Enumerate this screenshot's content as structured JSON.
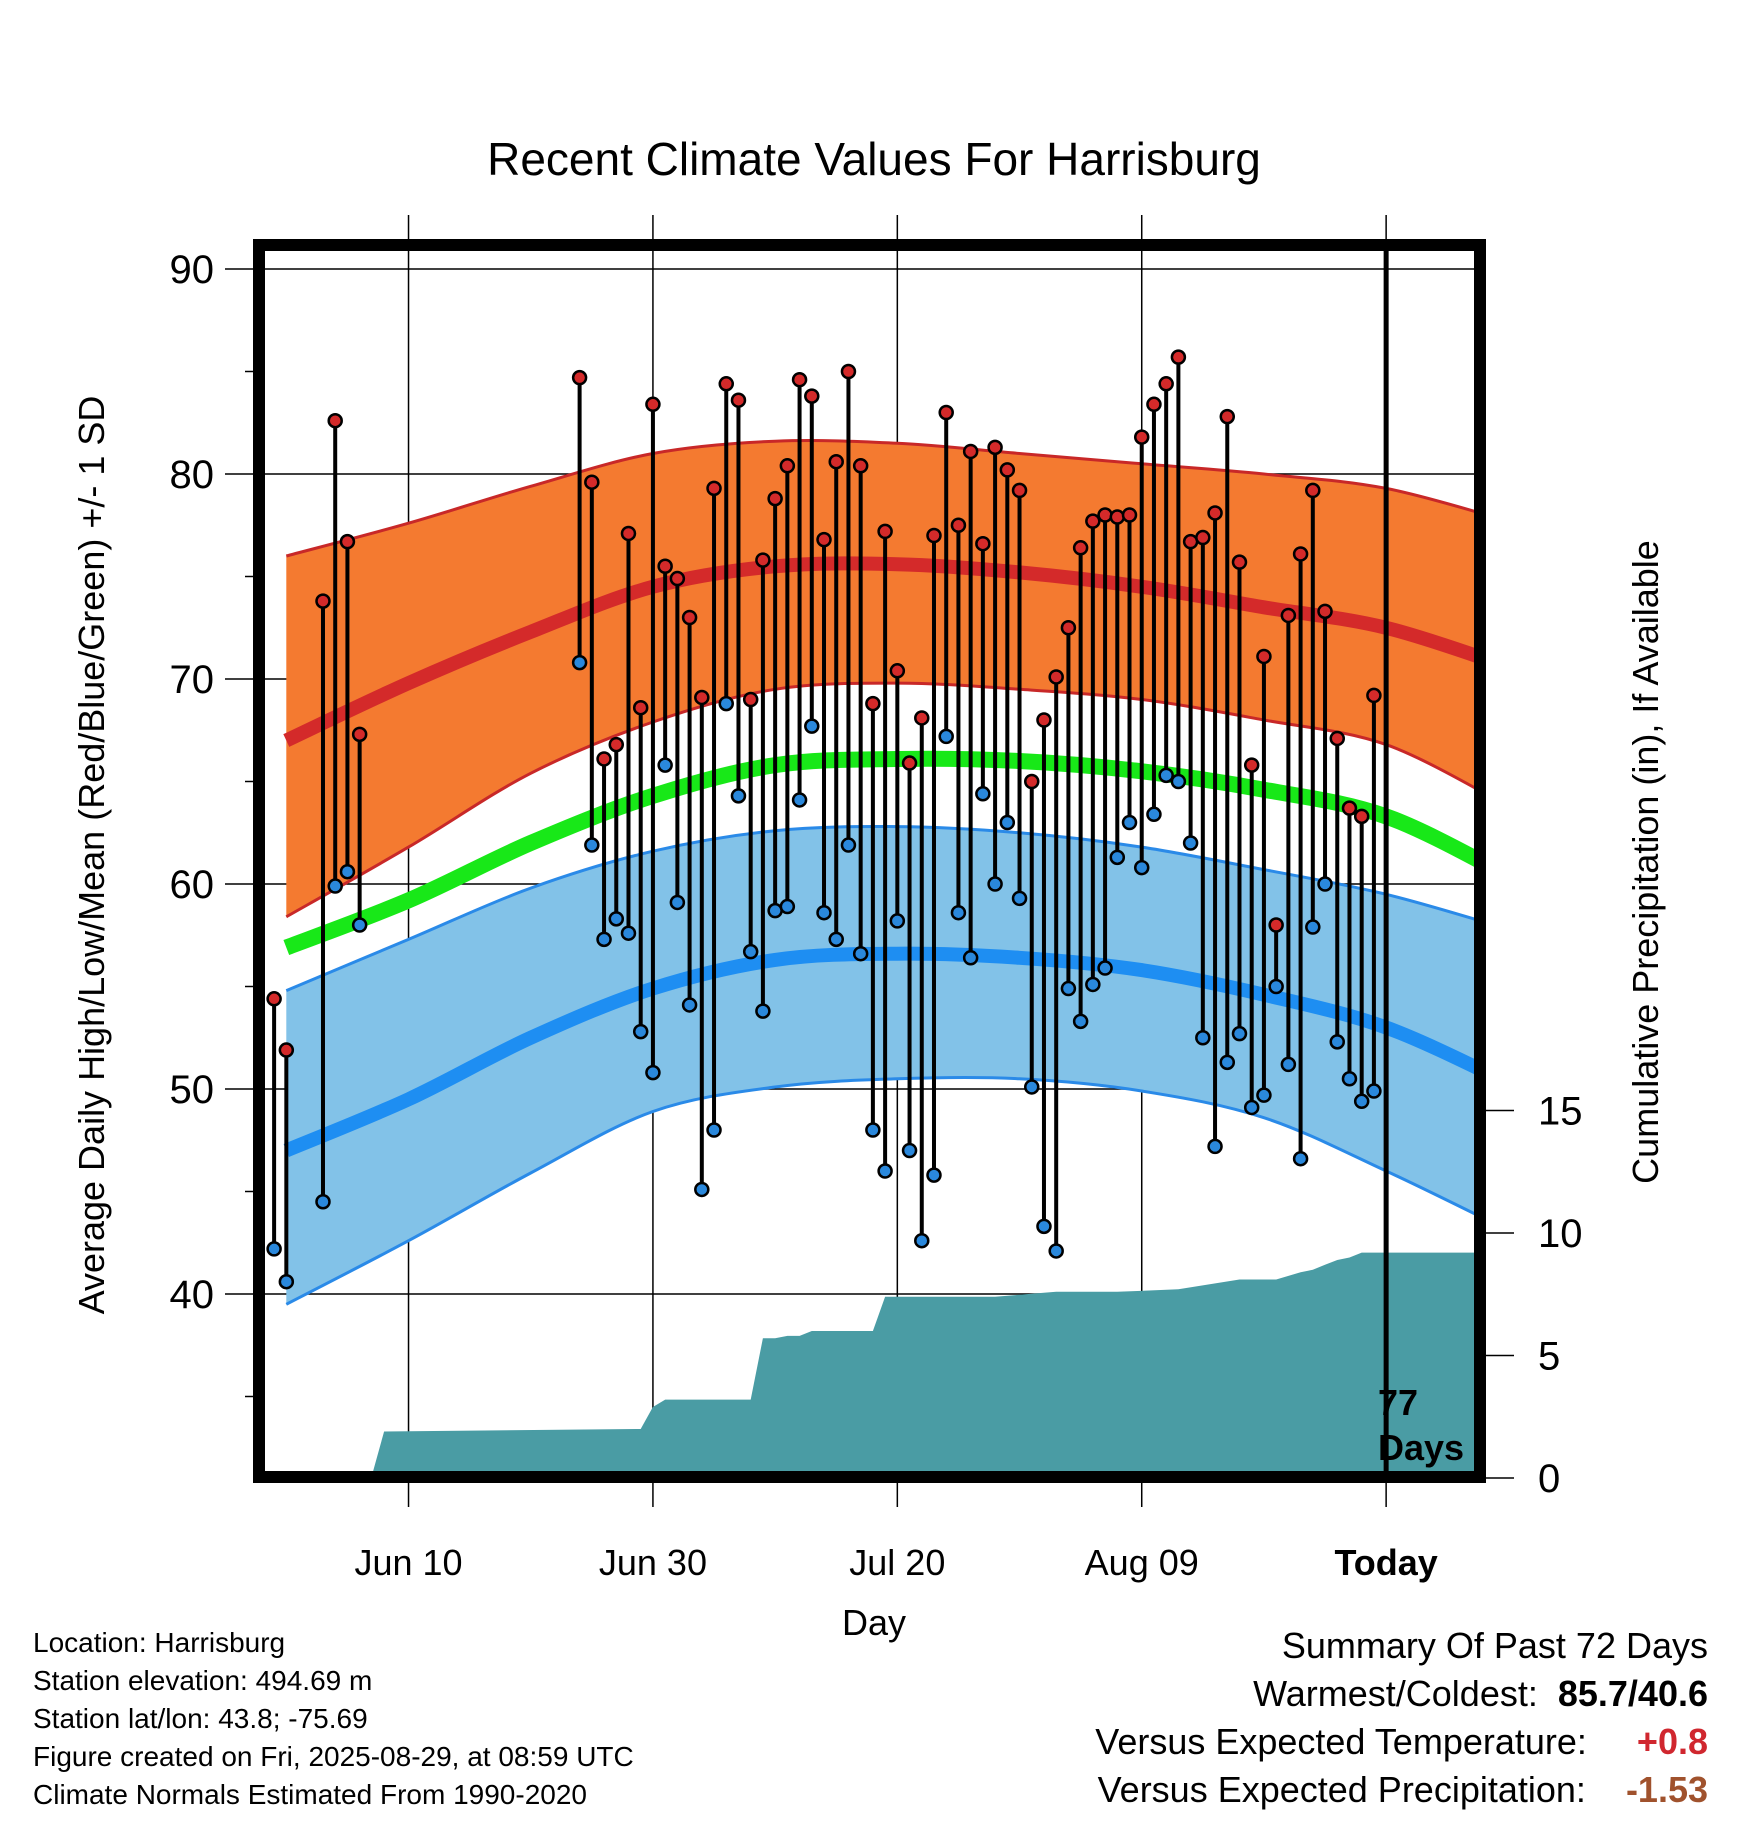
{
  "chart_data": {
    "type": "line",
    "title": "Recent Climate Values For Harrisburg",
    "xlabel": "Day",
    "ylabel": "Average Daily High/Low/Mean (Red/Blue/Green) +/- 1 SD",
    "y2label": "Cumulative Precipitation (in), If Available",
    "ylim": [
      30,
      90
    ],
    "yticks": [
      40,
      50,
      60,
      70,
      80,
      90
    ],
    "y2lim": [
      0,
      30
    ],
    "y2ticks": [
      0,
      5,
      10,
      15
    ],
    "xlim": [
      0,
      76
    ],
    "xticks": [
      {
        "x": 7,
        "label": "Jun 10"
      },
      {
        "x": 27,
        "label": "Jun 30"
      },
      {
        "x": 47,
        "label": "Jul 20"
      },
      {
        "x": 67,
        "label": "Aug 09"
      },
      {
        "x": 87,
        "label": "Today"
      }
    ],
    "grid": true,
    "today_x": 87,
    "today_label": "77",
    "today_label2": "Days",
    "normals": {
      "days": [
        -3,
        7,
        17,
        27,
        37,
        47,
        57,
        67,
        77,
        87,
        97
      ],
      "high_mean": [
        67.0,
        69.8,
        72.3,
        74.5,
        75.5,
        75.6,
        75.2,
        74.5,
        73.5,
        72.5,
        70.6
      ],
      "high_plus_sd": [
        76.0,
        77.6,
        79.4,
        81.0,
        81.6,
        81.5,
        81.0,
        80.5,
        80.0,
        79.3,
        77.7
      ],
      "high_minus_sd": [
        58.4,
        61.8,
        65.4,
        67.9,
        69.5,
        69.8,
        69.5,
        69.0,
        68.0,
        66.8,
        63.8
      ],
      "mean": [
        56.9,
        59.2,
        62.0,
        64.3,
        65.8,
        66.1,
        66.0,
        65.5,
        64.6,
        63.3,
        60.4
      ],
      "low_mean": [
        47.0,
        49.5,
        52.5,
        54.9,
        56.3,
        56.6,
        56.4,
        55.8,
        54.6,
        53.0,
        50.3
      ],
      "low_plus_sd": [
        54.8,
        57.3,
        59.8,
        61.6,
        62.6,
        62.8,
        62.5,
        61.8,
        60.7,
        59.5,
        57.8
      ],
      "low_minus_sd": [
        39.5,
        42.6,
        45.9,
        48.9,
        50.1,
        50.5,
        50.5,
        49.9,
        48.6,
        46.0,
        43.1
      ]
    },
    "series": [
      {
        "name": "High",
        "x": [
          -4,
          -3,
          0,
          1,
          2,
          3,
          21,
          22,
          23,
          24,
          25,
          26,
          27,
          28,
          29,
          30,
          31,
          32,
          33,
          34,
          35,
          36,
          37,
          38,
          39,
          40,
          41,
          42,
          43,
          44,
          45,
          46,
          47,
          48,
          49,
          50,
          51,
          52,
          53,
          54,
          55,
          56,
          57,
          58,
          59,
          60,
          61,
          62,
          63,
          64,
          65,
          66,
          67,
          68,
          69,
          70,
          71,
          72,
          73,
          74,
          75,
          76,
          77,
          78,
          79,
          80,
          81,
          82,
          83,
          84,
          85,
          86
        ],
        "values": [
          54.4,
          51.9,
          73.8,
          82.6,
          76.7,
          67.3,
          84.7,
          79.6,
          66.1,
          66.8,
          77.1,
          68.6,
          83.4,
          75.5,
          74.9,
          73.0,
          69.1,
          79.3,
          84.4,
          83.6,
          69.0,
          75.8,
          78.8,
          80.4,
          84.6,
          83.8,
          76.8,
          80.6,
          85.0,
          80.4,
          68.8,
          77.2,
          70.4,
          65.9,
          68.1,
          77.0,
          83.0,
          77.5,
          81.1,
          76.6,
          81.3,
          80.2,
          79.2,
          65.0,
          68.0,
          70.1,
          72.5,
          76.4,
          77.7,
          78.0,
          77.9,
          78.0,
          81.8,
          83.4,
          84.4,
          85.7,
          76.7,
          76.9,
          78.1,
          82.8,
          75.7,
          65.8,
          71.1,
          58.0,
          73.1,
          76.1,
          79.2,
          73.3,
          67.1,
          63.7,
          63.3,
          69.2
        ]
      },
      {
        "name": "Low",
        "x": [
          -4,
          -3,
          0,
          1,
          2,
          3,
          21,
          22,
          23,
          24,
          25,
          26,
          27,
          28,
          29,
          30,
          31,
          32,
          33,
          34,
          35,
          36,
          37,
          38,
          39,
          40,
          41,
          42,
          43,
          44,
          45,
          46,
          47,
          48,
          49,
          50,
          51,
          52,
          53,
          54,
          55,
          56,
          57,
          58,
          59,
          60,
          61,
          62,
          63,
          64,
          65,
          66,
          67,
          68,
          69,
          70,
          71,
          72,
          73,
          74,
          75,
          76,
          77,
          78,
          79,
          80,
          81,
          82,
          83,
          84,
          85,
          86
        ],
        "values": [
          42.2,
          40.6,
          44.5,
          59.9,
          60.6,
          58.0,
          70.8,
          61.9,
          57.3,
          58.3,
          57.6,
          52.8,
          50.8,
          65.8,
          59.1,
          54.1,
          45.1,
          48.0,
          68.8,
          64.3,
          56.7,
          53.8,
          58.7,
          58.9,
          64.1,
          67.7,
          58.6,
          57.3,
          61.9,
          56.6,
          48.0,
          46.0,
          58.2,
          47.0,
          42.6,
          45.8,
          67.2,
          58.6,
          56.4,
          64.4,
          60.0,
          63.0,
          59.3,
          50.1,
          43.3,
          42.1,
          54.9,
          53.3,
          55.1,
          55.9,
          61.3,
          63.0,
          60.8,
          63.4,
          65.3,
          65.0,
          62.0,
          52.5,
          47.2,
          51.3,
          52.7,
          49.1,
          49.7,
          55.0,
          51.2,
          46.6,
          57.9,
          60.0,
          52.3,
          50.5,
          49.4,
          49.9
        ]
      }
    ],
    "precip": {
      "x": [
        -4,
        4,
        5,
        26,
        27,
        28,
        29,
        30,
        31,
        32,
        33,
        34,
        35,
        36,
        37,
        38,
        39,
        40,
        41,
        42,
        43,
        44,
        45,
        46,
        47,
        48,
        49,
        50,
        51,
        52,
        53,
        54,
        55,
        60,
        65,
        70,
        75,
        78,
        80,
        81,
        82,
        83,
        84,
        85,
        86,
        95
      ],
      "values": [
        0,
        0.1,
        1.9,
        2.0,
        2.9,
        3.2,
        3.2,
        3.2,
        3.2,
        3.2,
        3.2,
        3.2,
        3.2,
        5.7,
        5.7,
        5.8,
        5.8,
        6.0,
        6.0,
        6.0,
        6.0,
        6.0,
        6.0,
        7.4,
        7.4,
        7.4,
        7.4,
        7.4,
        7.4,
        7.4,
        7.4,
        7.4,
        7.4,
        7.6,
        7.6,
        7.7,
        8.1,
        8.1,
        8.4,
        8.5,
        8.7,
        8.9,
        9.0,
        9.2,
        9.2,
        9.2
      ]
    }
  },
  "footer": {
    "location": "Location: Harrisburg",
    "elevation": "Station elevation: 494.69 m",
    "latlon": "Station lat/lon: 43.8; -75.69",
    "created": "Figure created on Fri, 2025-08-29, at 08:59 UTC",
    "normals_source": "Climate Normals Estimated From 1990-2020"
  },
  "summary": {
    "heading": "Summary Of Past 72 Days",
    "warmest_coldest_label": "Warmest/Coldest:",
    "warmest_coldest_value": "85.7/40.6",
    "temp_label": "Versus Expected Temperature:",
    "temp_value": "+0.8",
    "precip_label": "Versus Expected Precipitation:",
    "precip_value": "-1.53",
    "colors": {
      "temp": "#d0272f",
      "precip": "#a0522d"
    }
  },
  "colors": {
    "high_band": "#f47a30",
    "high_mean": "#d42a2a",
    "low_band": "#82c2e8",
    "low_mean": "#1e8ef2",
    "mean": "#18e818",
    "precip": "#4a9ca4",
    "high_marker": "#d42a2a",
    "low_marker": "#2a88dc"
  }
}
